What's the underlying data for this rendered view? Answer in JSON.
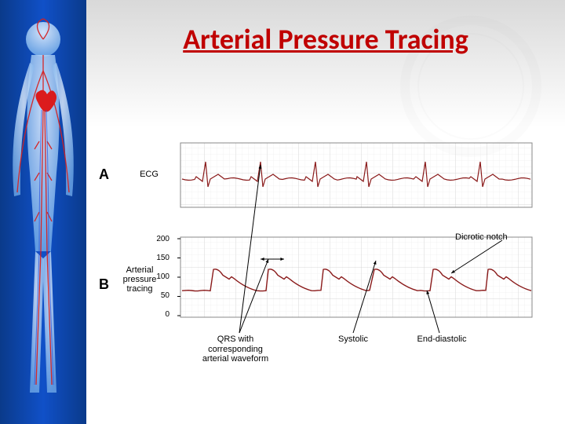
{
  "title": "Arterial Pressure Tracing",
  "title_color": "#c00000",
  "sidebar": {
    "gradient": [
      "#0a3a8a",
      "#1050c8"
    ],
    "figure_body_color": "#cfe8ff",
    "vessel_color": "#cc1a1a"
  },
  "panelA": {
    "letter": "A",
    "axis_label": "ECG",
    "chart": {
      "type": "line",
      "xlim": [
        0,
        440
      ],
      "ylim": [
        -20,
        30
      ],
      "background": "#ffffff",
      "grid_minor": "#e8e8e8",
      "grid_major": "#cfcfcf",
      "border": "#888888",
      "line_color": "#8a1a1a",
      "line_width": 1.2,
      "beats_x": [
        30,
        100,
        170,
        235,
        310,
        380
      ],
      "r_height": 22,
      "s_depth": -10,
      "t_height": 6,
      "baseline_noise": 1.5
    }
  },
  "panelB": {
    "letter": "B",
    "axis_label": "Arterial\npressure\ntracing",
    "chart": {
      "type": "line",
      "xlim": [
        0,
        440
      ],
      "ylim": [
        0,
        200
      ],
      "yticks": [
        0,
        50,
        100,
        150,
        200
      ],
      "background": "#ffffff",
      "grid_minor": "#e8e8e8",
      "grid_major": "#cfcfcf",
      "border": "#888888",
      "line_color": "#8a1a1a",
      "line_width": 1.4,
      "beats_x": [
        40,
        110,
        180,
        245,
        320,
        390
      ],
      "systolic": 120,
      "diastolic": 65,
      "dicrotic_y": 95
    }
  },
  "callouts": {
    "qrs": "QRS with\ncorresponding\narterial waveform",
    "dicrotic": "Dicrotic notch",
    "systolic": "Systolic",
    "end_diastolic": "End-diastolic",
    "double_arrow_color": "#000000"
  }
}
